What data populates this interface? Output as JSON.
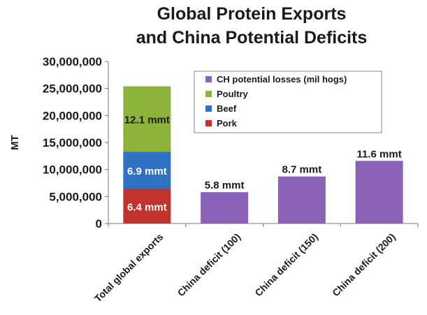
{
  "chart_data": {
    "type": "bar",
    "title_line1": "Global Protein Exports",
    "title_line2": "and China Potential Deficits",
    "ylabel": "MT",
    "ylim": [
      0,
      30000000
    ],
    "yticks": [
      0,
      5000000,
      10000000,
      15000000,
      20000000,
      25000000,
      30000000
    ],
    "ytick_labels": [
      "0",
      "5,000,000",
      "10,000,000",
      "15,000,000",
      "20,000,000",
      "25,000,000",
      "30,000,000"
    ],
    "grid": false,
    "legend_position": "top-right",
    "categories": [
      "Total global exports",
      "China deficit (100)",
      "China deficit (150)",
      "China deficit (200)"
    ],
    "series": [
      {
        "name": "Pork",
        "color": "#c0332f",
        "values": [
          6400000,
          0,
          0,
          0
        ],
        "labels": [
          "6.4 mmt",
          "",
          "",
          ""
        ]
      },
      {
        "name": "Beef",
        "color": "#2f72c4",
        "values": [
          6900000,
          0,
          0,
          0
        ],
        "labels": [
          "6.9 mmt",
          "",
          "",
          ""
        ]
      },
      {
        "name": "Poultry",
        "color": "#8db33a",
        "values": [
          12100000,
          0,
          0,
          0
        ],
        "labels": [
          "12.1 mmt",
          "",
          "",
          ""
        ]
      },
      {
        "name": "CH potential losses (mil hogs)",
        "color": "#8a62b9",
        "values": [
          0,
          5800000,
          8700000,
          11600000
        ],
        "labels": [
          "",
          "5.8 mmt",
          "8.7 mmt",
          "11.6 mmt"
        ]
      }
    ],
    "legend_order": [
      "CH potential losses (mil hogs)",
      "Poultry",
      "Beef",
      "Pork"
    ]
  }
}
